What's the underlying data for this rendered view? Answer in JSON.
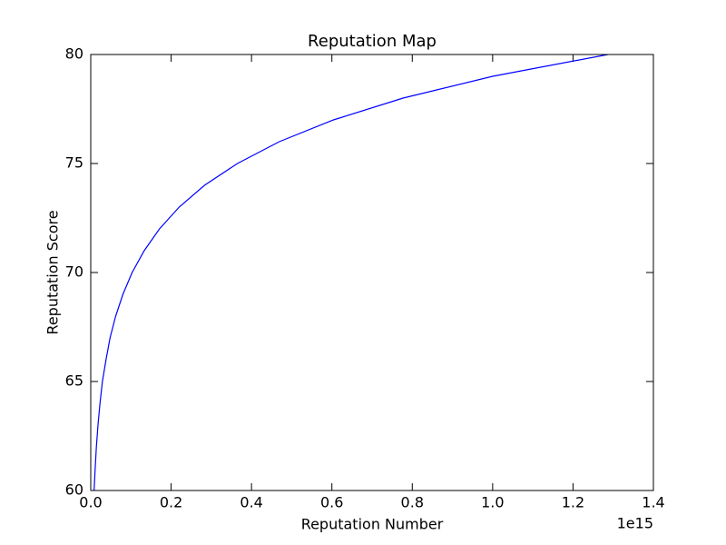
{
  "chart_data": {
    "type": "line",
    "title": "Reputation Map",
    "xlabel": "Reputation Number",
    "ylabel": "Reputation Score",
    "x_offset_label": "1e15",
    "x": [
      8300000000000.0,
      11000000000000.0,
      14000000000000.0,
      18000000000000.0,
      23000000000000.0,
      29000000000000.0,
      38000000000000.0,
      48000000000000.0,
      62000000000000.0,
      80000000000000.0,
      103000000000000.0,
      133000000000000.0,
      171000000000000.0,
      220000000000000.0,
      283000000000000.0,
      365000000000000.0,
      469000000000000.0,
      604000000000000.0,
      777000000000000.0,
      1000000000000000.0,
      1287000000000000.0
    ],
    "series": [
      {
        "name": "Reputation Score",
        "color": "#0000ff",
        "values": [
          60,
          61,
          62,
          63,
          64,
          65,
          66,
          67,
          68,
          69,
          70,
          71,
          72,
          73,
          74,
          75,
          76,
          77,
          78,
          79,
          80
        ]
      }
    ],
    "xlim": [
      0,
      1400000000000000.0
    ],
    "xticks": [
      {
        "value": 0,
        "label": "0.0"
      },
      {
        "value": 200000000000000.0,
        "label": "0.2"
      },
      {
        "value": 400000000000000.0,
        "label": "0.4"
      },
      {
        "value": 600000000000000.0,
        "label": "0.6"
      },
      {
        "value": 800000000000000.0,
        "label": "0.8"
      },
      {
        "value": 1000000000000000.0,
        "label": "1.0"
      },
      {
        "value": 1200000000000000.0,
        "label": "1.2"
      },
      {
        "value": 1400000000000000.0,
        "label": "1.4"
      }
    ],
    "ylim": [
      60,
      80
    ],
    "yticks": [
      60,
      65,
      70,
      75,
      80
    ],
    "grid": false
  }
}
